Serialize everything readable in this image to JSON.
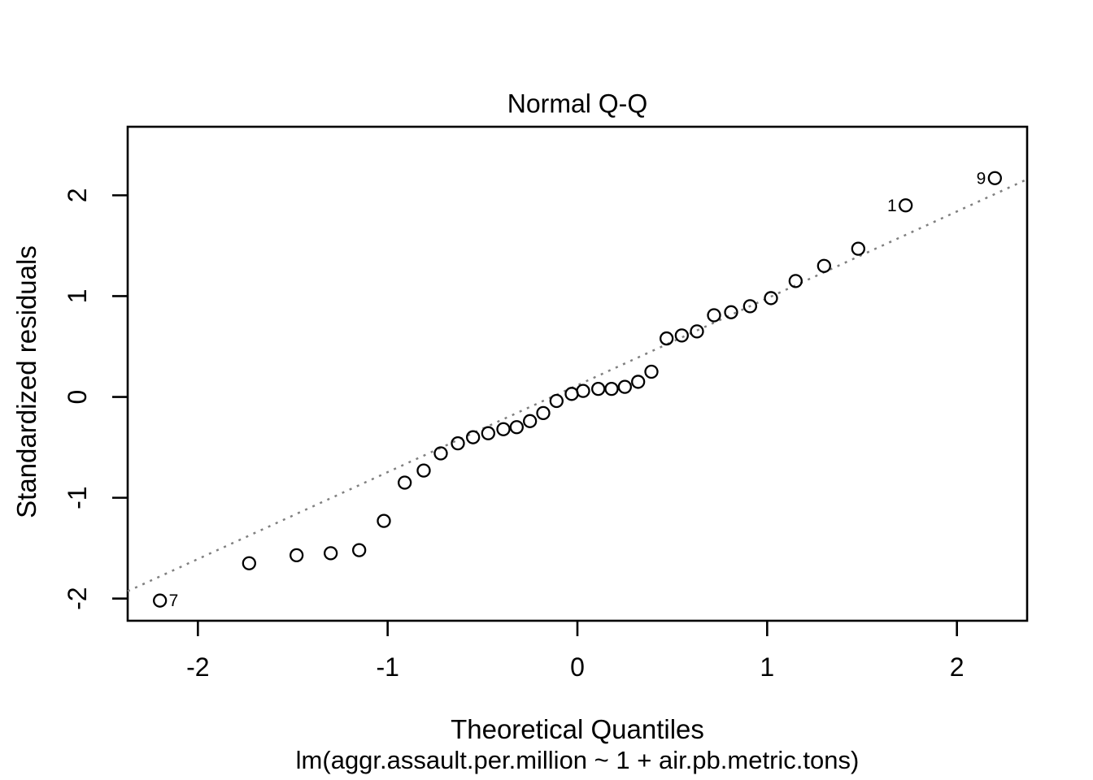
{
  "figure": {
    "background_color": "#ffffff",
    "foreground_color": "#000000"
  },
  "chart_data": {
    "type": "scatter",
    "title": "Normal Q-Q",
    "xlabel": "Theoretical Quantiles",
    "ylabel": "Standardized residuals",
    "subtitle": "lm(aggr.assault.per.million ~ 1 + air.pb.metric.tons)",
    "xlim": [
      -2.37,
      2.37
    ],
    "ylim": [
      -2.22,
      2.68
    ],
    "xticks": [
      -2,
      -1,
      0,
      1,
      2
    ],
    "yticks": [
      -2,
      -1,
      0,
      1,
      2
    ],
    "grid": false,
    "legend": "none",
    "marker": "open-circle",
    "marker_color": "#000000",
    "points": [
      [
        -2.2,
        -2.02
      ],
      [
        -1.73,
        -1.65
      ],
      [
        -1.48,
        -1.57
      ],
      [
        -1.3,
        -1.55
      ],
      [
        -1.15,
        -1.52
      ],
      [
        -1.02,
        -1.23
      ],
      [
        -0.91,
        -0.85
      ],
      [
        -0.81,
        -0.73
      ],
      [
        -0.72,
        -0.56
      ],
      [
        -0.63,
        -0.46
      ],
      [
        -0.55,
        -0.4
      ],
      [
        -0.47,
        -0.36
      ],
      [
        -0.39,
        -0.32
      ],
      [
        -0.32,
        -0.3
      ],
      [
        -0.25,
        -0.24
      ],
      [
        -0.18,
        -0.16
      ],
      [
        -0.11,
        -0.04
      ],
      [
        -0.03,
        0.03
      ],
      [
        0.03,
        0.06
      ],
      [
        0.11,
        0.08
      ],
      [
        0.18,
        0.08
      ],
      [
        0.25,
        0.1
      ],
      [
        0.32,
        0.15
      ],
      [
        0.39,
        0.25
      ],
      [
        0.47,
        0.58
      ],
      [
        0.55,
        0.61
      ],
      [
        0.63,
        0.65
      ],
      [
        0.72,
        0.81
      ],
      [
        0.81,
        0.84
      ],
      [
        0.91,
        0.9
      ],
      [
        1.02,
        0.98
      ],
      [
        1.15,
        1.15
      ],
      [
        1.3,
        1.3
      ],
      [
        1.48,
        1.47
      ],
      [
        1.73,
        1.9
      ],
      [
        2.2,
        2.17
      ]
    ],
    "point_labels": [
      {
        "text": "7",
        "x": -2.2,
        "y": -2.02,
        "side": "right"
      },
      {
        "text": "1",
        "x": 1.73,
        "y": 1.9,
        "side": "left"
      },
      {
        "text": "9",
        "x": 2.2,
        "y": 2.17,
        "side": "left"
      }
    ],
    "reference_line": {
      "kind": "qqline",
      "slope": 0.862,
      "intercept": 0.116,
      "line_style": "dotted",
      "color": "#808080"
    }
  }
}
